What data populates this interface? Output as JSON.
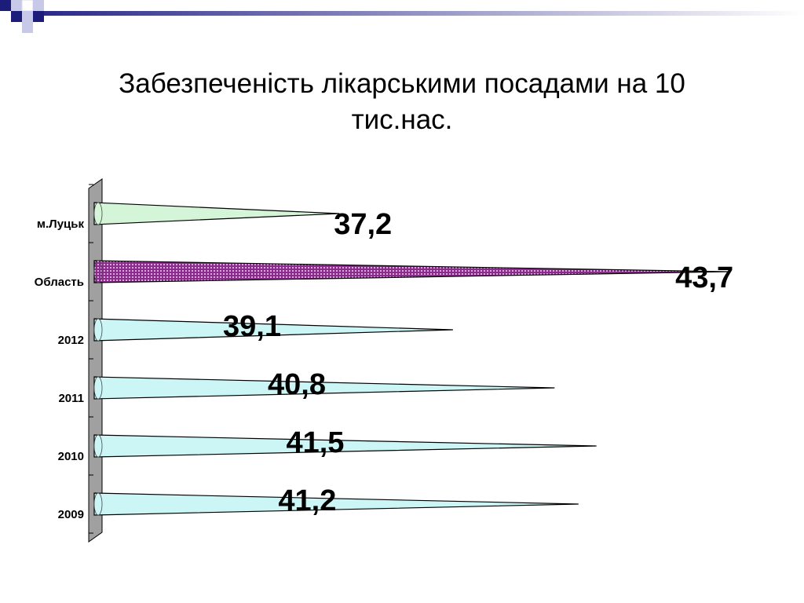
{
  "chart_data": {
    "type": "bar",
    "orientation": "horizontal",
    "bar_style": "cone",
    "title": "Забезпеченість лікарськими посадами на 10 тис.нас.",
    "categories": [
      "м.Луцьк",
      "Область",
      "2012",
      "2011",
      "2010",
      "2009"
    ],
    "values": [
      37.2,
      43.7,
      39.1,
      40.8,
      41.5,
      41.2
    ],
    "value_labels": [
      "37,2",
      "43,7",
      "39,1",
      "40,8",
      "41,5",
      "41,2"
    ],
    "colors": [
      "#d4f5d8",
      "#8a2c8a",
      "#ccf5f5",
      "#ccf5f5",
      "#ccf5f5",
      "#ccf5f5"
    ],
    "xlim": [
      33.1,
      44
    ]
  }
}
